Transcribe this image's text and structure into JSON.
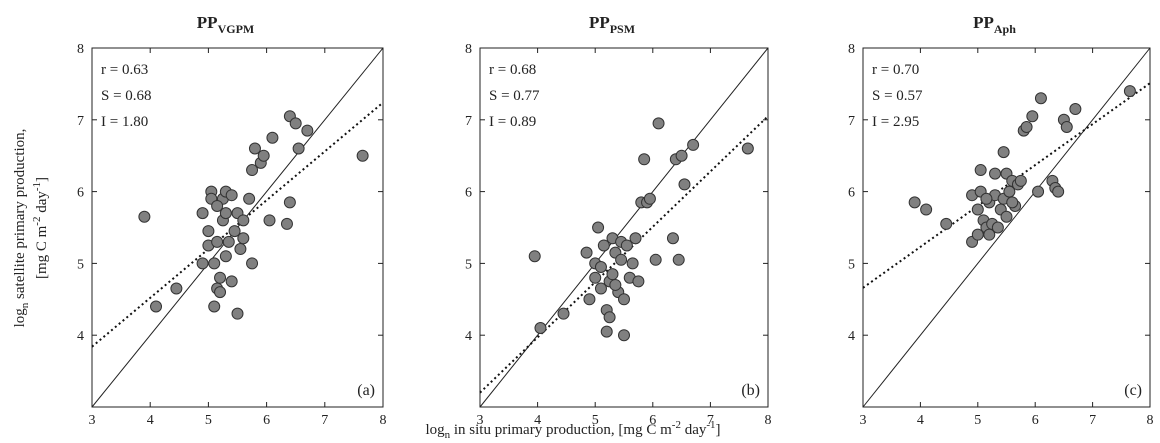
{
  "axis_labels": {
    "y_line1": [
      "log",
      "n",
      " satellite primary production,"
    ],
    "y_line2": [
      "[mg C m",
      "-2",
      " day",
      "-1",
      "]"
    ],
    "x": [
      "log",
      "n",
      " in situ primary production, [mg C m",
      "-2",
      " day",
      "-1",
      "]"
    ]
  },
  "chart_data": [
    {
      "type": "scatter",
      "title": "PP",
      "title_subscript": "VGPM",
      "panel_label": "(a)",
      "annotations": [
        "r = 0.63",
        "S = 0.68",
        "I = 1.80"
      ],
      "fit": {
        "slope": 0.68,
        "intercept": 1.8
      },
      "color": "#808080",
      "xlim": [
        3,
        8
      ],
      "ylim": [
        3,
        8
      ],
      "xticks": [
        3,
        4,
        5,
        6,
        7,
        8
      ],
      "yticks": [
        4,
        5,
        6,
        7,
        8
      ],
      "x": [
        3.9,
        4.1,
        4.45,
        4.9,
        4.9,
        5.0,
        5.0,
        5.05,
        5.05,
        5.1,
        5.1,
        5.15,
        5.15,
        5.2,
        5.25,
        5.25,
        5.3,
        5.3,
        5.3,
        5.35,
        5.4,
        5.4,
        5.45,
        5.5,
        5.5,
        5.55,
        5.6,
        5.6,
        5.7,
        5.75,
        5.75,
        5.8,
        5.9,
        5.95,
        6.05,
        6.1,
        6.35,
        6.4,
        6.4,
        6.5,
        6.55,
        6.7,
        7.65,
        5.2,
        5.15
      ],
      "values": [
        5.65,
        4.4,
        4.65,
        5.7,
        5.0,
        5.45,
        5.25,
        6.0,
        5.9,
        5.0,
        4.4,
        4.65,
        5.3,
        4.8,
        5.9,
        5.6,
        6.0,
        5.7,
        5.1,
        5.3,
        5.95,
        4.75,
        5.45,
        4.3,
        5.7,
        5.2,
        5.35,
        5.6,
        5.9,
        5.0,
        6.3,
        6.6,
        6.4,
        6.5,
        5.6,
        6.75,
        5.55,
        5.85,
        7.05,
        6.95,
        6.6,
        6.85,
        6.5,
        4.6,
        5.8
      ]
    },
    {
      "type": "scatter",
      "title": "PP",
      "title_subscript": "PSM",
      "panel_label": "(b)",
      "annotations": [
        "r = 0.68",
        "S = 0.77",
        "I = 0.89"
      ],
      "fit": {
        "slope": 0.77,
        "intercept": 0.89
      },
      "color": "#808080",
      "xlim": [
        3,
        8
      ],
      "ylim": [
        3,
        8
      ],
      "xticks": [
        3,
        4,
        5,
        6,
        7,
        8
      ],
      "yticks": [
        4,
        5,
        6,
        7,
        8
      ],
      "x": [
        3.95,
        4.05,
        4.45,
        4.85,
        4.9,
        5.0,
        5.0,
        5.05,
        5.1,
        5.1,
        5.15,
        5.2,
        5.2,
        5.25,
        5.25,
        5.3,
        5.3,
        5.35,
        5.4,
        5.45,
        5.5,
        5.5,
        5.55,
        5.6,
        5.65,
        5.7,
        5.75,
        5.8,
        5.85,
        5.9,
        5.95,
        6.05,
        6.1,
        6.35,
        6.4,
        6.45,
        6.5,
        6.55,
        6.7,
        7.65,
        5.35,
        5.45
      ],
      "values": [
        5.1,
        4.1,
        4.3,
        5.15,
        4.5,
        5.0,
        4.8,
        5.5,
        4.65,
        4.95,
        5.25,
        4.05,
        4.35,
        4.25,
        4.75,
        4.85,
        5.35,
        5.15,
        4.6,
        5.3,
        4.5,
        4.0,
        5.25,
        4.8,
        5.0,
        5.35,
        4.75,
        5.85,
        6.45,
        5.85,
        5.9,
        5.05,
        6.95,
        5.35,
        6.45,
        5.05,
        6.5,
        6.1,
        6.65,
        6.6,
        4.7,
        5.05
      ]
    },
    {
      "type": "scatter",
      "title": "PP",
      "title_subscript": "Aph",
      "panel_label": "(c)",
      "annotations": [
        "r = 0.70",
        "S = 0.57",
        "I = 2.95"
      ],
      "fit": {
        "slope": 0.57,
        "intercept": 2.95
      },
      "color": "#808080",
      "xlim": [
        3,
        8
      ],
      "ylim": [
        3,
        8
      ],
      "xticks": [
        3,
        4,
        5,
        6,
        7,
        8
      ],
      "yticks": [
        4,
        5,
        6,
        7,
        8
      ],
      "x": [
        3.9,
        4.1,
        4.45,
        4.9,
        4.9,
        5.0,
        5.0,
        5.05,
        5.05,
        5.1,
        5.15,
        5.2,
        5.2,
        5.25,
        5.3,
        5.3,
        5.35,
        5.4,
        5.45,
        5.45,
        5.5,
        5.5,
        5.55,
        5.6,
        5.65,
        5.7,
        5.75,
        5.8,
        5.85,
        5.95,
        6.05,
        6.1,
        6.3,
        6.35,
        6.4,
        6.5,
        6.55,
        6.7,
        7.65,
        5.15,
        5.6
      ],
      "values": [
        5.85,
        5.75,
        5.55,
        5.95,
        5.3,
        5.75,
        5.4,
        6.0,
        6.3,
        5.6,
        5.5,
        5.85,
        5.4,
        5.55,
        5.95,
        6.25,
        5.5,
        5.75,
        5.9,
        6.55,
        5.65,
        6.25,
        6.0,
        6.15,
        5.8,
        6.1,
        6.15,
        6.85,
        6.9,
        7.05,
        6.0,
        7.3,
        6.15,
        6.05,
        6.0,
        7.0,
        6.9,
        7.15,
        7.4,
        5.9,
        5.85
      ]
    }
  ]
}
